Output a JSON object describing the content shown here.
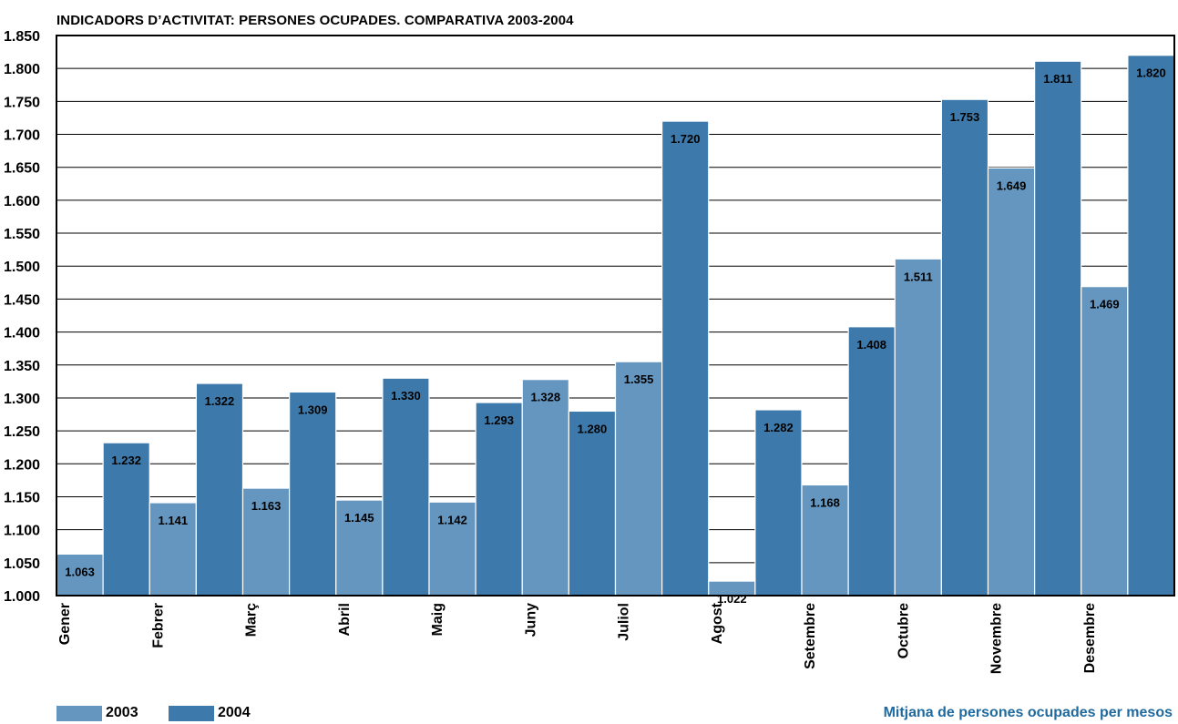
{
  "chart_data": {
    "type": "bar",
    "title": "INDICADORS D’ACTIVITAT: PERSONES OCUPADES. COMPARATIVA 2003-2004",
    "caption": "Mitjana de persones ocupades per mesos",
    "categories": [
      "Gener",
      "Febrer",
      "Març",
      "Abril",
      "Maig",
      "Juny",
      "Juliol",
      "Agost",
      "Setembre",
      "Octubre",
      "Novembre",
      "Desembre"
    ],
    "series": [
      {
        "name": "2003",
        "color": "#6496c0",
        "values": [
          1063,
          1141,
          1163,
          1145,
          1142,
          1328,
          1355,
          1022,
          1168,
          1511,
          1649,
          1469
        ],
        "labels": [
          "1.063",
          "1.141",
          "1.163",
          "1.145",
          "1.142",
          "1.328",
          "1.355",
          "1.022",
          "1.168",
          "1.511",
          "1.649",
          "1.469"
        ]
      },
      {
        "name": "2004",
        "color": "#3d7aab",
        "values": [
          1232,
          1322,
          1309,
          1330,
          1293,
          1280,
          1720,
          1282,
          1408,
          1753,
          1811,
          1820
        ],
        "labels": [
          "1.232",
          "1.322",
          "1.309",
          "1.330",
          "1.293",
          "1.280",
          "1.720",
          "1.282",
          "1.408",
          "1.753",
          "1.811",
          "1.820"
        ]
      }
    ],
    "ylim": [
      1000,
      1850
    ],
    "yticks": [
      1000,
      1050,
      1100,
      1150,
      1200,
      1250,
      1300,
      1350,
      1400,
      1450,
      1500,
      1550,
      1600,
      1650,
      1700,
      1750,
      1800,
      1850
    ],
    "ytick_labels": [
      "1.000",
      "1.050",
      "1.100",
      "1.150",
      "1.200",
      "1.250",
      "1.300",
      "1.350",
      "1.400",
      "1.450",
      "1.500",
      "1.550",
      "1.600",
      "1.650",
      "1.700",
      "1.750",
      "1.800",
      "1.850"
    ],
    "grid": true,
    "legend": "bottom-left"
  }
}
